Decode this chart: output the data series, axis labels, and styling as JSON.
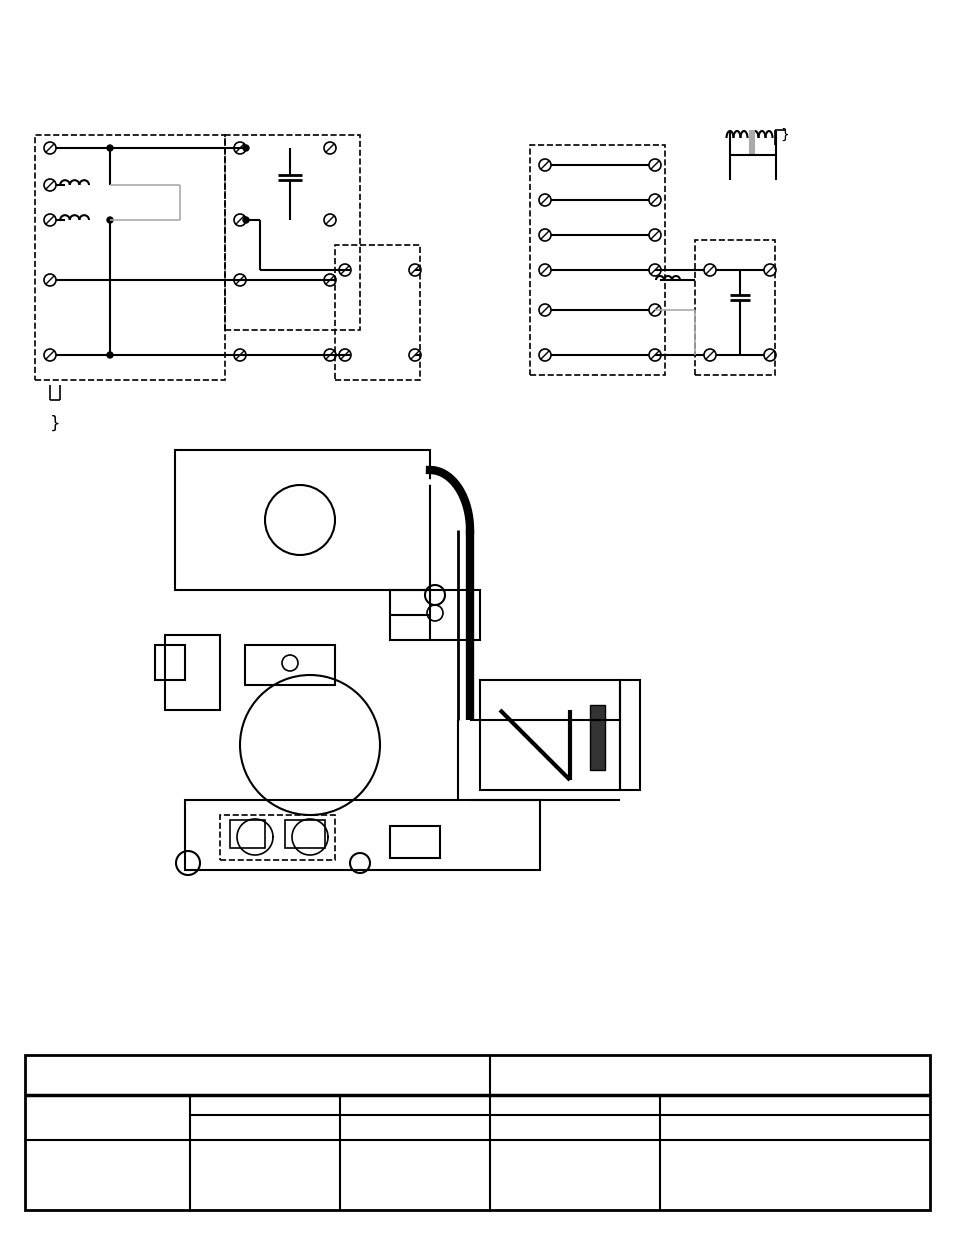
{
  "bg_color": "#ffffff",
  "line_color": "#000000",
  "gray_color": "#aaaaaa",
  "fig_width": 9.54,
  "fig_height": 12.35,
  "dpi": 100
}
